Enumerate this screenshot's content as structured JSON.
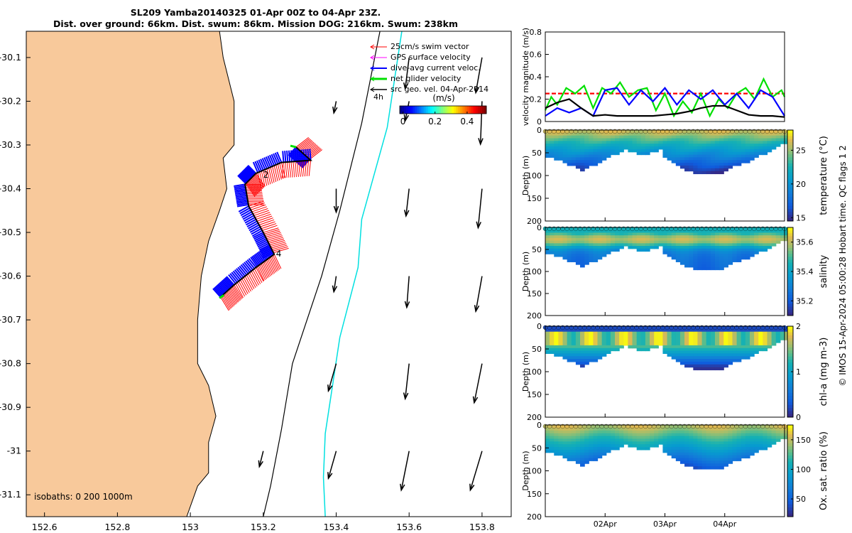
{
  "title": {
    "line1": "SL209 Yamba20140325 01-Apr 00Z to 04-Apr 23Z.",
    "line2": "Dist. over ground: 66km. Dist. swum: 86km. Mission DOG: 216km. Swum: 238km"
  },
  "credit": "© IMOS 15-Apr-2024 05:00:28 Hobart time. QC flags 1  2",
  "colors": {
    "land": "#f8c99b",
    "swim": "#ff0000",
    "gps": "#ff00ff",
    "dive": "#0000ff",
    "net": "#00e000",
    "geo": "#000000",
    "isobath": "#00e0e0"
  },
  "chart_data": [
    {
      "type": "map",
      "xlim": [
        152.55,
        153.88
      ],
      "ylim": [
        -31.15,
        -30.04
      ],
      "x_ticks": [
        152.6,
        152.8,
        153,
        153.2,
        153.4,
        153.6,
        153.8
      ],
      "x_tick_labels": [
        "152.6",
        "152.8",
        "153",
        "153.2",
        "153.4",
        "153.6",
        "153.8"
      ],
      "y_ticks": [
        -30.1,
        -30.2,
        -30.3,
        -30.4,
        -30.5,
        -30.6,
        -30.7,
        -30.8,
        -30.9,
        -31,
        -31.1
      ],
      "y_tick_labels": [
        "-30.1",
        "-30.2",
        "-30.3",
        "-30.4",
        "-30.5",
        "-30.6",
        "-30.7",
        "-30.8",
        "-30.9",
        "-31",
        "-31.1"
      ],
      "legend": {
        "placement": "top-right",
        "entries": [
          "25cm/s swim vector",
          "GPS surface velocity",
          "dive-avg current veloc.",
          "net glider velocity",
          "src geo. vel. 04-Apr-2014"
        ]
      },
      "colorbar": {
        "label": "(m/s)",
        "ticks": [
          0,
          0.2,
          0.4
        ],
        "tick_labels": [
          "0",
          "0.2",
          "0.4"
        ],
        "range": [
          -0.02,
          0.52
        ]
      },
      "timestep_label": "4h",
      "isobaths_label": "isobaths: 0   200  1000m",
      "coastline": [
        [
          152.55,
          -30.04
        ],
        [
          153.08,
          -30.04
        ],
        [
          153.09,
          -30.1
        ],
        [
          153.12,
          -30.2
        ],
        [
          153.12,
          -30.3
        ],
        [
          153.09,
          -30.33
        ],
        [
          153.1,
          -30.4
        ],
        [
          153.08,
          -30.45
        ],
        [
          153.05,
          -30.52
        ],
        [
          153.03,
          -30.6
        ],
        [
          153.02,
          -30.7
        ],
        [
          153.02,
          -30.8
        ],
        [
          153.05,
          -30.85
        ],
        [
          153.07,
          -30.92
        ],
        [
          153.05,
          -30.98
        ],
        [
          153.05,
          -31.05
        ],
        [
          153.02,
          -31.08
        ],
        [
          152.99,
          -31.15
        ],
        [
          152.55,
          -31.15
        ]
      ],
      "isobath_1000m": [
        [
          153.58,
          -30.04
        ],
        [
          153.54,
          -30.26
        ],
        [
          153.47,
          -30.47
        ],
        [
          153.46,
          -30.58
        ],
        [
          153.41,
          -30.74
        ],
        [
          153.37,
          -30.96
        ],
        [
          153.365,
          -31.06
        ],
        [
          153.37,
          -31.15
        ]
      ],
      "isobath_200m": [
        [
          153.52,
          -30.04
        ],
        [
          153.47,
          -30.25
        ],
        [
          153.41,
          -30.45
        ],
        [
          153.36,
          -30.6
        ],
        [
          153.28,
          -30.8
        ],
        [
          153.25,
          -30.95
        ],
        [
          153.22,
          -31.08
        ],
        [
          153.2,
          -31.15
        ]
      ],
      "glider_track": [
        [
          153.29,
          -30.305
        ],
        [
          153.33,
          -30.335
        ],
        [
          153.25,
          -30.34
        ],
        [
          153.18,
          -30.365
        ],
        [
          153.15,
          -30.39
        ],
        [
          153.16,
          -30.44
        ],
        [
          153.2,
          -30.5
        ],
        [
          153.23,
          -30.55
        ],
        [
          153.18,
          -30.58
        ],
        [
          153.12,
          -30.62
        ],
        [
          153.08,
          -30.65
        ]
      ],
      "track_labels": [
        {
          "text": "2",
          "lon": 153.2,
          "lat": -30.375
        },
        {
          "text": "4",
          "lon": 153.235,
          "lat": -30.555
        }
      ],
      "geo_vectors": [
        {
          "lon": 153.6,
          "lat": -30.1,
          "u": -0.05,
          "v": -0.4
        },
        {
          "lon": 153.8,
          "lat": -30.1,
          "u": -0.08,
          "v": -0.45
        },
        {
          "lon": 153.4,
          "lat": -30.2,
          "u": -0.03,
          "v": -0.15
        },
        {
          "lon": 153.6,
          "lat": -30.2,
          "u": -0.05,
          "v": -0.25
        },
        {
          "lon": 153.8,
          "lat": -30.2,
          "u": -0.02,
          "v": -0.55
        },
        {
          "lon": 153.4,
          "lat": -30.4,
          "u": 0.0,
          "v": -0.3
        },
        {
          "lon": 153.6,
          "lat": -30.4,
          "u": -0.04,
          "v": -0.35
        },
        {
          "lon": 153.8,
          "lat": -30.4,
          "u": -0.05,
          "v": -0.5
        },
        {
          "lon": 153.4,
          "lat": -30.6,
          "u": -0.03,
          "v": -0.2
        },
        {
          "lon": 153.6,
          "lat": -30.6,
          "u": -0.03,
          "v": -0.4
        },
        {
          "lon": 153.8,
          "lat": -30.6,
          "u": -0.08,
          "v": -0.45
        },
        {
          "lon": 153.4,
          "lat": -30.8,
          "u": -0.1,
          "v": -0.35
        },
        {
          "lon": 153.6,
          "lat": -30.8,
          "u": -0.05,
          "v": -0.45
        },
        {
          "lon": 153.8,
          "lat": -30.8,
          "u": -0.1,
          "v": -0.5
        },
        {
          "lon": 153.2,
          "lat": -31.0,
          "u": -0.05,
          "v": -0.2
        },
        {
          "lon": 153.4,
          "lat": -31.0,
          "u": -0.1,
          "v": -0.35
        },
        {
          "lon": 153.6,
          "lat": -31.0,
          "u": -0.1,
          "v": -0.5
        },
        {
          "lon": 153.8,
          "lat": -31.0,
          "u": -0.15,
          "v": -0.5
        }
      ]
    },
    {
      "type": "line",
      "ylabel": "velocity magnitude (m/s)",
      "ylim": [
        0,
        0.8
      ],
      "y_ticks": [
        0,
        0.2,
        0.4,
        0.6,
        0.8
      ],
      "y_tick_labels": [
        "0",
        "0.2",
        "0.4",
        "0.6",
        "0.8"
      ],
      "xlim": [
        0,
        4
      ],
      "series": [
        {
          "color": "#ff0000",
          "style": "dashed",
          "x": [
            0,
            4
          ],
          "y": [
            0.25,
            0.25
          ]
        },
        {
          "color": "#00e000",
          "x": [
            0,
            0.1,
            0.2,
            0.35,
            0.5,
            0.65,
            0.8,
            0.95,
            1.1,
            1.25,
            1.4,
            1.55,
            1.7,
            1.85,
            2.0,
            2.15,
            2.3,
            2.45,
            2.6,
            2.75,
            2.9,
            3.05,
            3.2,
            3.35,
            3.5,
            3.65,
            3.8,
            3.95,
            4.0
          ],
          "y": [
            0.1,
            0.22,
            0.15,
            0.3,
            0.25,
            0.32,
            0.12,
            0.3,
            0.25,
            0.35,
            0.22,
            0.28,
            0.3,
            0.1,
            0.25,
            0.05,
            0.18,
            0.08,
            0.25,
            0.05,
            0.2,
            0.12,
            0.25,
            0.3,
            0.2,
            0.38,
            0.22,
            0.28,
            0.22
          ]
        },
        {
          "color": "#0000ff",
          "x": [
            0,
            0.2,
            0.4,
            0.6,
            0.8,
            1.0,
            1.2,
            1.4,
            1.6,
            1.8,
            2.0,
            2.2,
            2.4,
            2.6,
            2.8,
            3.0,
            3.2,
            3.4,
            3.6,
            3.8,
            4.0
          ],
          "y": [
            0.05,
            0.12,
            0.08,
            0.12,
            0.05,
            0.28,
            0.3,
            0.15,
            0.28,
            0.18,
            0.3,
            0.15,
            0.28,
            0.2,
            0.28,
            0.15,
            0.25,
            0.12,
            0.28,
            0.22,
            0.05
          ]
        },
        {
          "color": "#000000",
          "x": [
            0,
            0.2,
            0.4,
            0.6,
            0.8,
            1.0,
            1.2,
            1.4,
            1.6,
            1.8,
            2.0,
            2.2,
            2.4,
            2.6,
            2.8,
            3.0,
            3.2,
            3.4,
            3.6,
            3.8,
            4.0
          ],
          "y": [
            0.12,
            0.17,
            0.2,
            0.12,
            0.05,
            0.06,
            0.05,
            0.05,
            0.05,
            0.05,
            0.06,
            0.07,
            0.09,
            0.12,
            0.14,
            0.14,
            0.1,
            0.06,
            0.05,
            0.05,
            0.04
          ]
        }
      ]
    },
    {
      "type": "heatmap",
      "variable": "temperature",
      "ylabel": "Depth (m)",
      "cbar_label": "temperature (°C)",
      "cbar_ticks": [
        15,
        20,
        25
      ],
      "cbar_tick_labels": [
        "15",
        "20",
        "25"
      ],
      "cbar_range": [
        14.5,
        28
      ],
      "ylim": [
        0,
        200
      ],
      "y_ticks": [
        0,
        50,
        100,
        150,
        200
      ],
      "y_tick_labels": [
        "0",
        "50",
        "100",
        "150",
        "200"
      ],
      "xlim": [
        0,
        4
      ],
      "x_ticks": [
        1,
        2,
        3
      ],
      "x_tick_labels": [
        "02Apr",
        "03Apr",
        "04Apr"
      ]
    },
    {
      "type": "heatmap",
      "variable": "salinity",
      "ylabel": "Depth (m)",
      "cbar_label": "salinity",
      "cbar_ticks": [
        35.2,
        35.4,
        35.6
      ],
      "cbar_tick_labels": [
        "35.2",
        "35.4",
        "35.6"
      ],
      "cbar_range": [
        35.1,
        35.7
      ],
      "ylim": [
        0,
        200
      ],
      "y_ticks": [
        0,
        50,
        100,
        150,
        200
      ],
      "y_tick_labels": [
        "0",
        "50",
        "100",
        "150",
        "200"
      ],
      "xlim": [
        0,
        4
      ],
      "x_ticks": [
        1,
        2,
        3
      ],
      "x_tick_labels": [
        "02Apr",
        "03Apr",
        "04Apr"
      ]
    },
    {
      "type": "heatmap",
      "variable": "chl-a",
      "ylabel": "Depth (m)",
      "cbar_label": "chl-a (mg m-3)",
      "cbar_ticks": [
        0,
        1,
        2
      ],
      "cbar_tick_labels": [
        "0",
        "1",
        "2"
      ],
      "cbar_range": [
        0,
        2
      ],
      "ylim": [
        0,
        200
      ],
      "y_ticks": [
        0,
        50,
        100,
        150,
        200
      ],
      "y_tick_labels": [
        "0",
        "50",
        "100",
        "150",
        "200"
      ],
      "xlim": [
        0,
        4
      ],
      "x_ticks": [
        1,
        2,
        3
      ],
      "x_tick_labels": [
        "02Apr",
        "03Apr",
        "04Apr"
      ]
    },
    {
      "type": "heatmap",
      "variable": "Ox. sat. ratio",
      "ylabel": "Depth (m)",
      "cbar_label": "Ox. sat. ratio (%)",
      "cbar_ticks": [
        50,
        100,
        150
      ],
      "cbar_tick_labels": [
        "50",
        "100",
        "150"
      ],
      "cbar_range": [
        20,
        175
      ],
      "ylim": [
        0,
        200
      ],
      "y_ticks": [
        0,
        50,
        100,
        150,
        200
      ],
      "y_tick_labels": [
        "0",
        "50",
        "100",
        "150",
        "200"
      ],
      "xlim": [
        0,
        4
      ],
      "x_ticks": [
        1,
        2,
        3
      ],
      "x_tick_labels": [
        "02Apr",
        "03Apr",
        "04Apr"
      ]
    }
  ]
}
